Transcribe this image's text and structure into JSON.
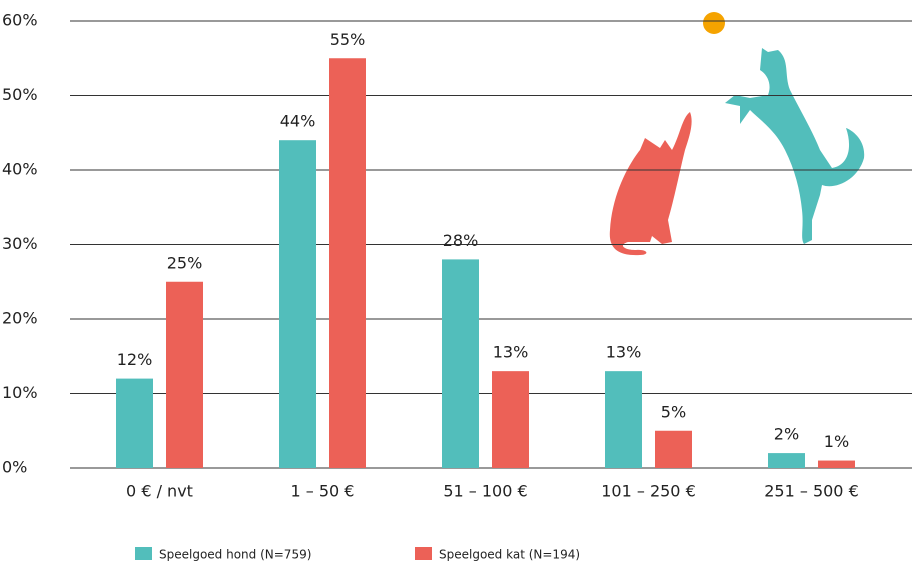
{
  "chart_data": {
    "type": "bar",
    "categories": [
      "0 € / nvt",
      "1 – 50 €",
      "51 – 100 €",
      "101 – 250 €",
      "251 – 500 €"
    ],
    "series": [
      {
        "name": "Speelgoed hond (N=759)",
        "color": "#52bebb",
        "values": [
          12,
          44,
          28,
          13,
          2
        ],
        "value_labels": [
          "12%",
          "44%",
          "28%",
          "13%",
          "2%"
        ]
      },
      {
        "name": "Speelgoed kat (N=194)",
        "color": "#ec6157",
        "values": [
          25,
          55,
          13,
          5,
          1
        ],
        "value_labels": [
          "25%",
          "55%",
          "13%",
          "5%",
          "1%"
        ]
      }
    ],
    "ylim": [
      0,
      60
    ],
    "yticks": [
      {
        "value": 0,
        "label": "0%"
      },
      {
        "value": 10,
        "label": "10%"
      },
      {
        "value": 20,
        "label": "20%"
      },
      {
        "value": 30,
        "label": "30%"
      },
      {
        "value": 40,
        "label": "40%"
      },
      {
        "value": 50,
        "label": "50%"
      },
      {
        "value": 60,
        "label": "60%"
      }
    ],
    "grid": true
  }
}
